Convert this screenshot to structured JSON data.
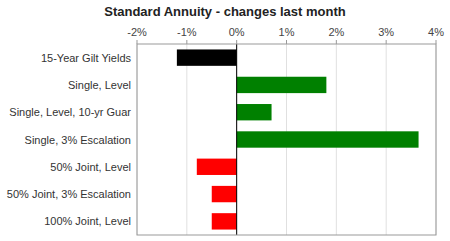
{
  "chart_data": {
    "type": "bar",
    "orientation": "horizontal",
    "title": "Standard Annuity - changes last month",
    "categories": [
      "15-Year Gilt Yields",
      "Single, Level",
      "Single, Level, 10-yr Guar",
      "Single, 3% Escalation",
      "50% Joint, Level",
      "50% Joint, 3% Escalation",
      "100% Joint, Level"
    ],
    "values": [
      -1.2,
      1.8,
      0.7,
      3.65,
      -0.8,
      -0.5,
      -0.5
    ],
    "colors": [
      "#000000",
      "#008000",
      "#008000",
      "#008000",
      "#ff0000",
      "#ff0000",
      "#ff0000"
    ],
    "xlim": [
      -2.0,
      4.0
    ],
    "xticks": [
      {
        "value": -2,
        "label": "-2%"
      },
      {
        "value": -1,
        "label": "-1%"
      },
      {
        "value": 0,
        "label": "0%"
      },
      {
        "value": 1,
        "label": "1%"
      },
      {
        "value": 2,
        "label": "2%"
      },
      {
        "value": 3,
        "label": "3%"
      },
      {
        "value": 4,
        "label": "4%"
      }
    ],
    "grid": true
  }
}
